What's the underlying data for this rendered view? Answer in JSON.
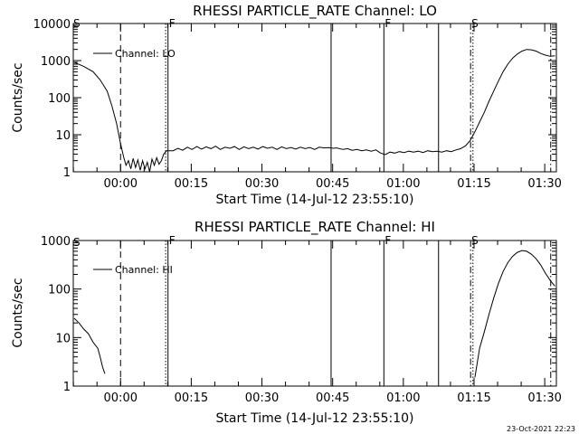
{
  "footer": {
    "date_stamp": "23-Oct-2021 22:23"
  },
  "chart_data": [
    {
      "type": "line",
      "title": "RHESSI PARTICLE_RATE Channel: LO",
      "xlabel": "Start Time (14-Jul-12 23:55:10)",
      "ylabel": "Counts/sec",
      "y_scale": "log",
      "ylim": [
        1,
        10000
      ],
      "y_ticks": [
        1,
        10,
        100,
        1000,
        10000
      ],
      "y_tick_labels": [
        "1",
        "10",
        "100",
        "1000",
        "10000"
      ],
      "x_unit": "minutes after 23:55:10",
      "xlim": [
        -5.2,
        97.3
      ],
      "x_ticks": [
        4.83,
        19.83,
        34.83,
        49.83,
        64.83,
        79.83,
        94.83
      ],
      "x_tick_labels": [
        "00:00",
        "00:15",
        "00:30",
        "00:45",
        "01:00",
        "01:15",
        "01:30"
      ],
      "legend": "Channel: LO",
      "legend_position": "top-left",
      "series": [
        {
          "name": "Channel: LO",
          "points": [
            [
              -5.0,
              900
            ],
            [
              -3.0,
              700
            ],
            [
              -1.0,
              500
            ],
            [
              0.5,
              300
            ],
            [
              2.0,
              150
            ],
            [
              3.0,
              60
            ],
            [
              4.0,
              20
            ],
            [
              4.8,
              6
            ],
            [
              5.5,
              2.5
            ],
            [
              6.0,
              1.5
            ],
            [
              6.5,
              2
            ],
            [
              7.0,
              1.2
            ],
            [
              7.5,
              2.3
            ],
            [
              8.0,
              1.3
            ],
            [
              8.5,
              2.1
            ],
            [
              9.0,
              1.1
            ],
            [
              9.5,
              2.0
            ],
            [
              10.0,
              1.2
            ],
            [
              10.5,
              1.8
            ],
            [
              11.0,
              1.0
            ],
            [
              11.5,
              2.2
            ],
            [
              12.0,
              1.5
            ],
            [
              12.5,
              2.4
            ],
            [
              13.0,
              1.6
            ],
            [
              13.5,
              2.0
            ],
            [
              14.0,
              3.0
            ],
            [
              14.6,
              3.7
            ],
            [
              16.0,
              3.7
            ],
            [
              17.0,
              4.3
            ],
            [
              18.0,
              3.8
            ],
            [
              19.0,
              4.6
            ],
            [
              20.0,
              4.0
            ],
            [
              21.0,
              4.8
            ],
            [
              22.0,
              4.1
            ],
            [
              23.0,
              4.7
            ],
            [
              24.0,
              4.2
            ],
            [
              25.0,
              4.9
            ],
            [
              26.0,
              4.0
            ],
            [
              27.0,
              4.6
            ],
            [
              28.0,
              4.3
            ],
            [
              29.0,
              4.8
            ],
            [
              30.0,
              4.0
            ],
            [
              31.0,
              4.7
            ],
            [
              32.0,
              4.2
            ],
            [
              33.0,
              4.6
            ],
            [
              34.0,
              4.1
            ],
            [
              35.0,
              4.8
            ],
            [
              36.0,
              4.3
            ],
            [
              37.0,
              4.6
            ],
            [
              38.0,
              4.0
            ],
            [
              39.0,
              4.7
            ],
            [
              40.0,
              4.2
            ],
            [
              41.0,
              4.5
            ],
            [
              42.0,
              4.1
            ],
            [
              43.0,
              4.6
            ],
            [
              44.0,
              4.2
            ],
            [
              45.0,
              4.5
            ],
            [
              46.0,
              4.0
            ],
            [
              47.0,
              4.6
            ],
            [
              48.0,
              4.4
            ],
            [
              49.0,
              4.5
            ],
            [
              50.0,
              4.3
            ],
            [
              50.7,
              4.4
            ],
            [
              52.0,
              4.0
            ],
            [
              53.0,
              4.2
            ],
            [
              54.0,
              3.8
            ],
            [
              55.0,
              4.0
            ],
            [
              56.0,
              3.7
            ],
            [
              57.0,
              3.9
            ],
            [
              58.0,
              3.6
            ],
            [
              59.0,
              3.9
            ],
            [
              60.0,
              3.2
            ],
            [
              61.0,
              2.9
            ],
            [
              62.0,
              3.4
            ],
            [
              63.0,
              3.2
            ],
            [
              64.0,
              3.5
            ],
            [
              65.0,
              3.3
            ],
            [
              66.0,
              3.6
            ],
            [
              67.0,
              3.4
            ],
            [
              68.0,
              3.6
            ],
            [
              69.0,
              3.3
            ],
            [
              70.0,
              3.7
            ],
            [
              71.0,
              3.5
            ],
            [
              72.0,
              3.6
            ],
            [
              73.0,
              3.4
            ],
            [
              74.0,
              3.7
            ],
            [
              75.0,
              3.5
            ],
            [
              76.0,
              3.9
            ],
            [
              77.0,
              4.2
            ],
            [
              78.0,
              5.0
            ],
            [
              79.0,
              7.0
            ],
            [
              80.0,
              12
            ],
            [
              81.0,
              22
            ],
            [
              82.0,
              40
            ],
            [
              83.0,
              80
            ],
            [
              84.0,
              150
            ],
            [
              85.0,
              280
            ],
            [
              86.0,
              500
            ],
            [
              87.0,
              800
            ],
            [
              88.0,
              1150
            ],
            [
              89.0,
              1500
            ],
            [
              90.0,
              1800
            ],
            [
              91.0,
              2000
            ],
            [
              92.0,
              1950
            ],
            [
              93.0,
              1800
            ],
            [
              94.0,
              1550
            ],
            [
              95.0,
              1400
            ],
            [
              96.0,
              1300
            ],
            [
              97.0,
              1350
            ]
          ]
        }
      ],
      "vertical_markers": [
        {
          "x": 4.83,
          "style": "dashed",
          "flag": ""
        },
        {
          "x": 14.4,
          "style": "dotted",
          "flag": ""
        },
        {
          "x": 14.9,
          "style": "solid",
          "flag": "F"
        },
        {
          "x": 49.5,
          "style": "solid",
          "flag": ""
        },
        {
          "x": 60.7,
          "style": "solid",
          "flag": "F"
        },
        {
          "x": 72.3,
          "style": "solid",
          "flag": ""
        },
        {
          "x": 79.1,
          "style": "dashdot",
          "flag": "S"
        },
        {
          "x": 79.6,
          "style": "dotted",
          "flag": ""
        },
        {
          "x": 96.1,
          "style": "dashdot",
          "flag": ""
        }
      ],
      "corner_flag": "S"
    },
    {
      "type": "line",
      "title": "RHESSI PARTICLE_RATE Channel: HI",
      "xlabel": "Start Time (14-Jul-12 23:55:10)",
      "ylabel": "Counts/sec",
      "y_scale": "log",
      "ylim": [
        1,
        1000
      ],
      "y_ticks": [
        1,
        10,
        100,
        1000
      ],
      "y_tick_labels": [
        "1",
        "10",
        "100",
        "1000"
      ],
      "x_unit": "minutes after 23:55:10",
      "xlim": [
        -5.2,
        97.3
      ],
      "x_ticks": [
        4.83,
        19.83,
        34.83,
        49.83,
        64.83,
        79.83,
        94.83
      ],
      "x_tick_labels": [
        "00:00",
        "00:15",
        "00:30",
        "00:45",
        "01:00",
        "01:15",
        "01:30"
      ],
      "legend": "Channel: HI",
      "legend_position": "top-left",
      "series": [
        {
          "name": "Channel: HI",
          "points_segments": [
            [
              [
                -5.0,
                25
              ],
              [
                -4.0,
                20
              ],
              [
                -3.0,
                15
              ],
              [
                -2.0,
                12
              ],
              [
                -1.0,
                8
              ],
              [
                0.0,
                6
              ],
              [
                0.5,
                4
              ],
              [
                1.0,
                2.5
              ],
              [
                1.5,
                1.8
              ]
            ],
            [
              [
                80.0,
                1.5
              ],
              [
                80.5,
                3.0
              ],
              [
                81.0,
                6
              ],
              [
                82.0,
                13
              ],
              [
                83.0,
                30
              ],
              [
                84.0,
                65
              ],
              [
                85.0,
                130
              ],
              [
                86.0,
                230
              ],
              [
                87.0,
                350
              ],
              [
                88.0,
                470
              ],
              [
                89.0,
                570
              ],
              [
                90.0,
                620
              ],
              [
                91.0,
                600
              ],
              [
                92.0,
                520
              ],
              [
                93.0,
                420
              ],
              [
                94.0,
                310
              ],
              [
                95.0,
                210
              ],
              [
                96.0,
                150
              ],
              [
                97.0,
                115
              ]
            ]
          ]
        }
      ],
      "vertical_markers": [
        {
          "x": 4.83,
          "style": "dashed",
          "flag": ""
        },
        {
          "x": 14.4,
          "style": "dotted",
          "flag": ""
        },
        {
          "x": 14.9,
          "style": "solid",
          "flag": "F"
        },
        {
          "x": 49.5,
          "style": "solid",
          "flag": ""
        },
        {
          "x": 60.7,
          "style": "solid",
          "flag": "F"
        },
        {
          "x": 72.3,
          "style": "solid",
          "flag": ""
        },
        {
          "x": 79.1,
          "style": "dashdot",
          "flag": "S"
        },
        {
          "x": 79.6,
          "style": "dotted",
          "flag": ""
        },
        {
          "x": 96.1,
          "style": "dashdot",
          "flag": ""
        }
      ],
      "corner_flag": "S"
    }
  ]
}
